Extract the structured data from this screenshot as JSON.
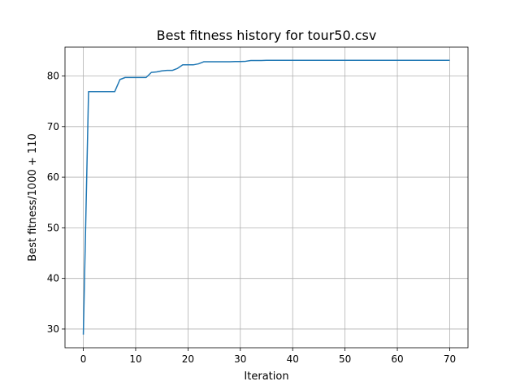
{
  "chart_data": {
    "type": "line",
    "title": "Best fitness history for tour50.csv",
    "xlabel": "Iteration",
    "ylabel": "Best fitness/1000 + 110",
    "xlim": [
      -3.5,
      73.5
    ],
    "ylim": [
      26.3,
      85.7
    ],
    "xticks": [
      0,
      10,
      20,
      30,
      40,
      50,
      60,
      70
    ],
    "yticks": [
      30,
      40,
      50,
      60,
      70,
      80
    ],
    "grid": true,
    "series": [
      {
        "color": "#1f77b4",
        "x": [
          0,
          1,
          2,
          3,
          4,
          5,
          6,
          7,
          8,
          9,
          10,
          11,
          12,
          13,
          14,
          15,
          16,
          17,
          18,
          19,
          20,
          21,
          22,
          23,
          24,
          25,
          26,
          27,
          28,
          29,
          30,
          31,
          32,
          33,
          34,
          35,
          36,
          37,
          38,
          39,
          40,
          41,
          42,
          43,
          44,
          45,
          46,
          47,
          48,
          49,
          50,
          51,
          52,
          53,
          54,
          55,
          56,
          57,
          58,
          59,
          60,
          61,
          62,
          63,
          64,
          65,
          66,
          67,
          68,
          69,
          70
        ],
        "y": [
          28.9,
          76.9,
          76.9,
          76.9,
          76.9,
          76.9,
          76.9,
          79.3,
          79.7,
          79.7,
          79.7,
          79.7,
          79.7,
          80.7,
          80.8,
          81.0,
          81.1,
          81.1,
          81.5,
          82.2,
          82.2,
          82.2,
          82.4,
          82.8,
          82.8,
          82.8,
          82.8,
          82.8,
          82.8,
          82.85,
          82.85,
          82.9,
          83.05,
          83.05,
          83.05,
          83.1,
          83.1,
          83.1,
          83.1,
          83.1,
          83.1,
          83.1,
          83.1,
          83.1,
          83.1,
          83.1,
          83.1,
          83.1,
          83.1,
          83.1,
          83.1,
          83.1,
          83.1,
          83.1,
          83.1,
          83.1,
          83.1,
          83.1,
          83.1,
          83.1,
          83.1,
          83.1,
          83.1,
          83.1,
          83.1,
          83.1,
          83.1,
          83.1,
          83.1,
          83.1,
          83.1
        ]
      }
    ]
  }
}
